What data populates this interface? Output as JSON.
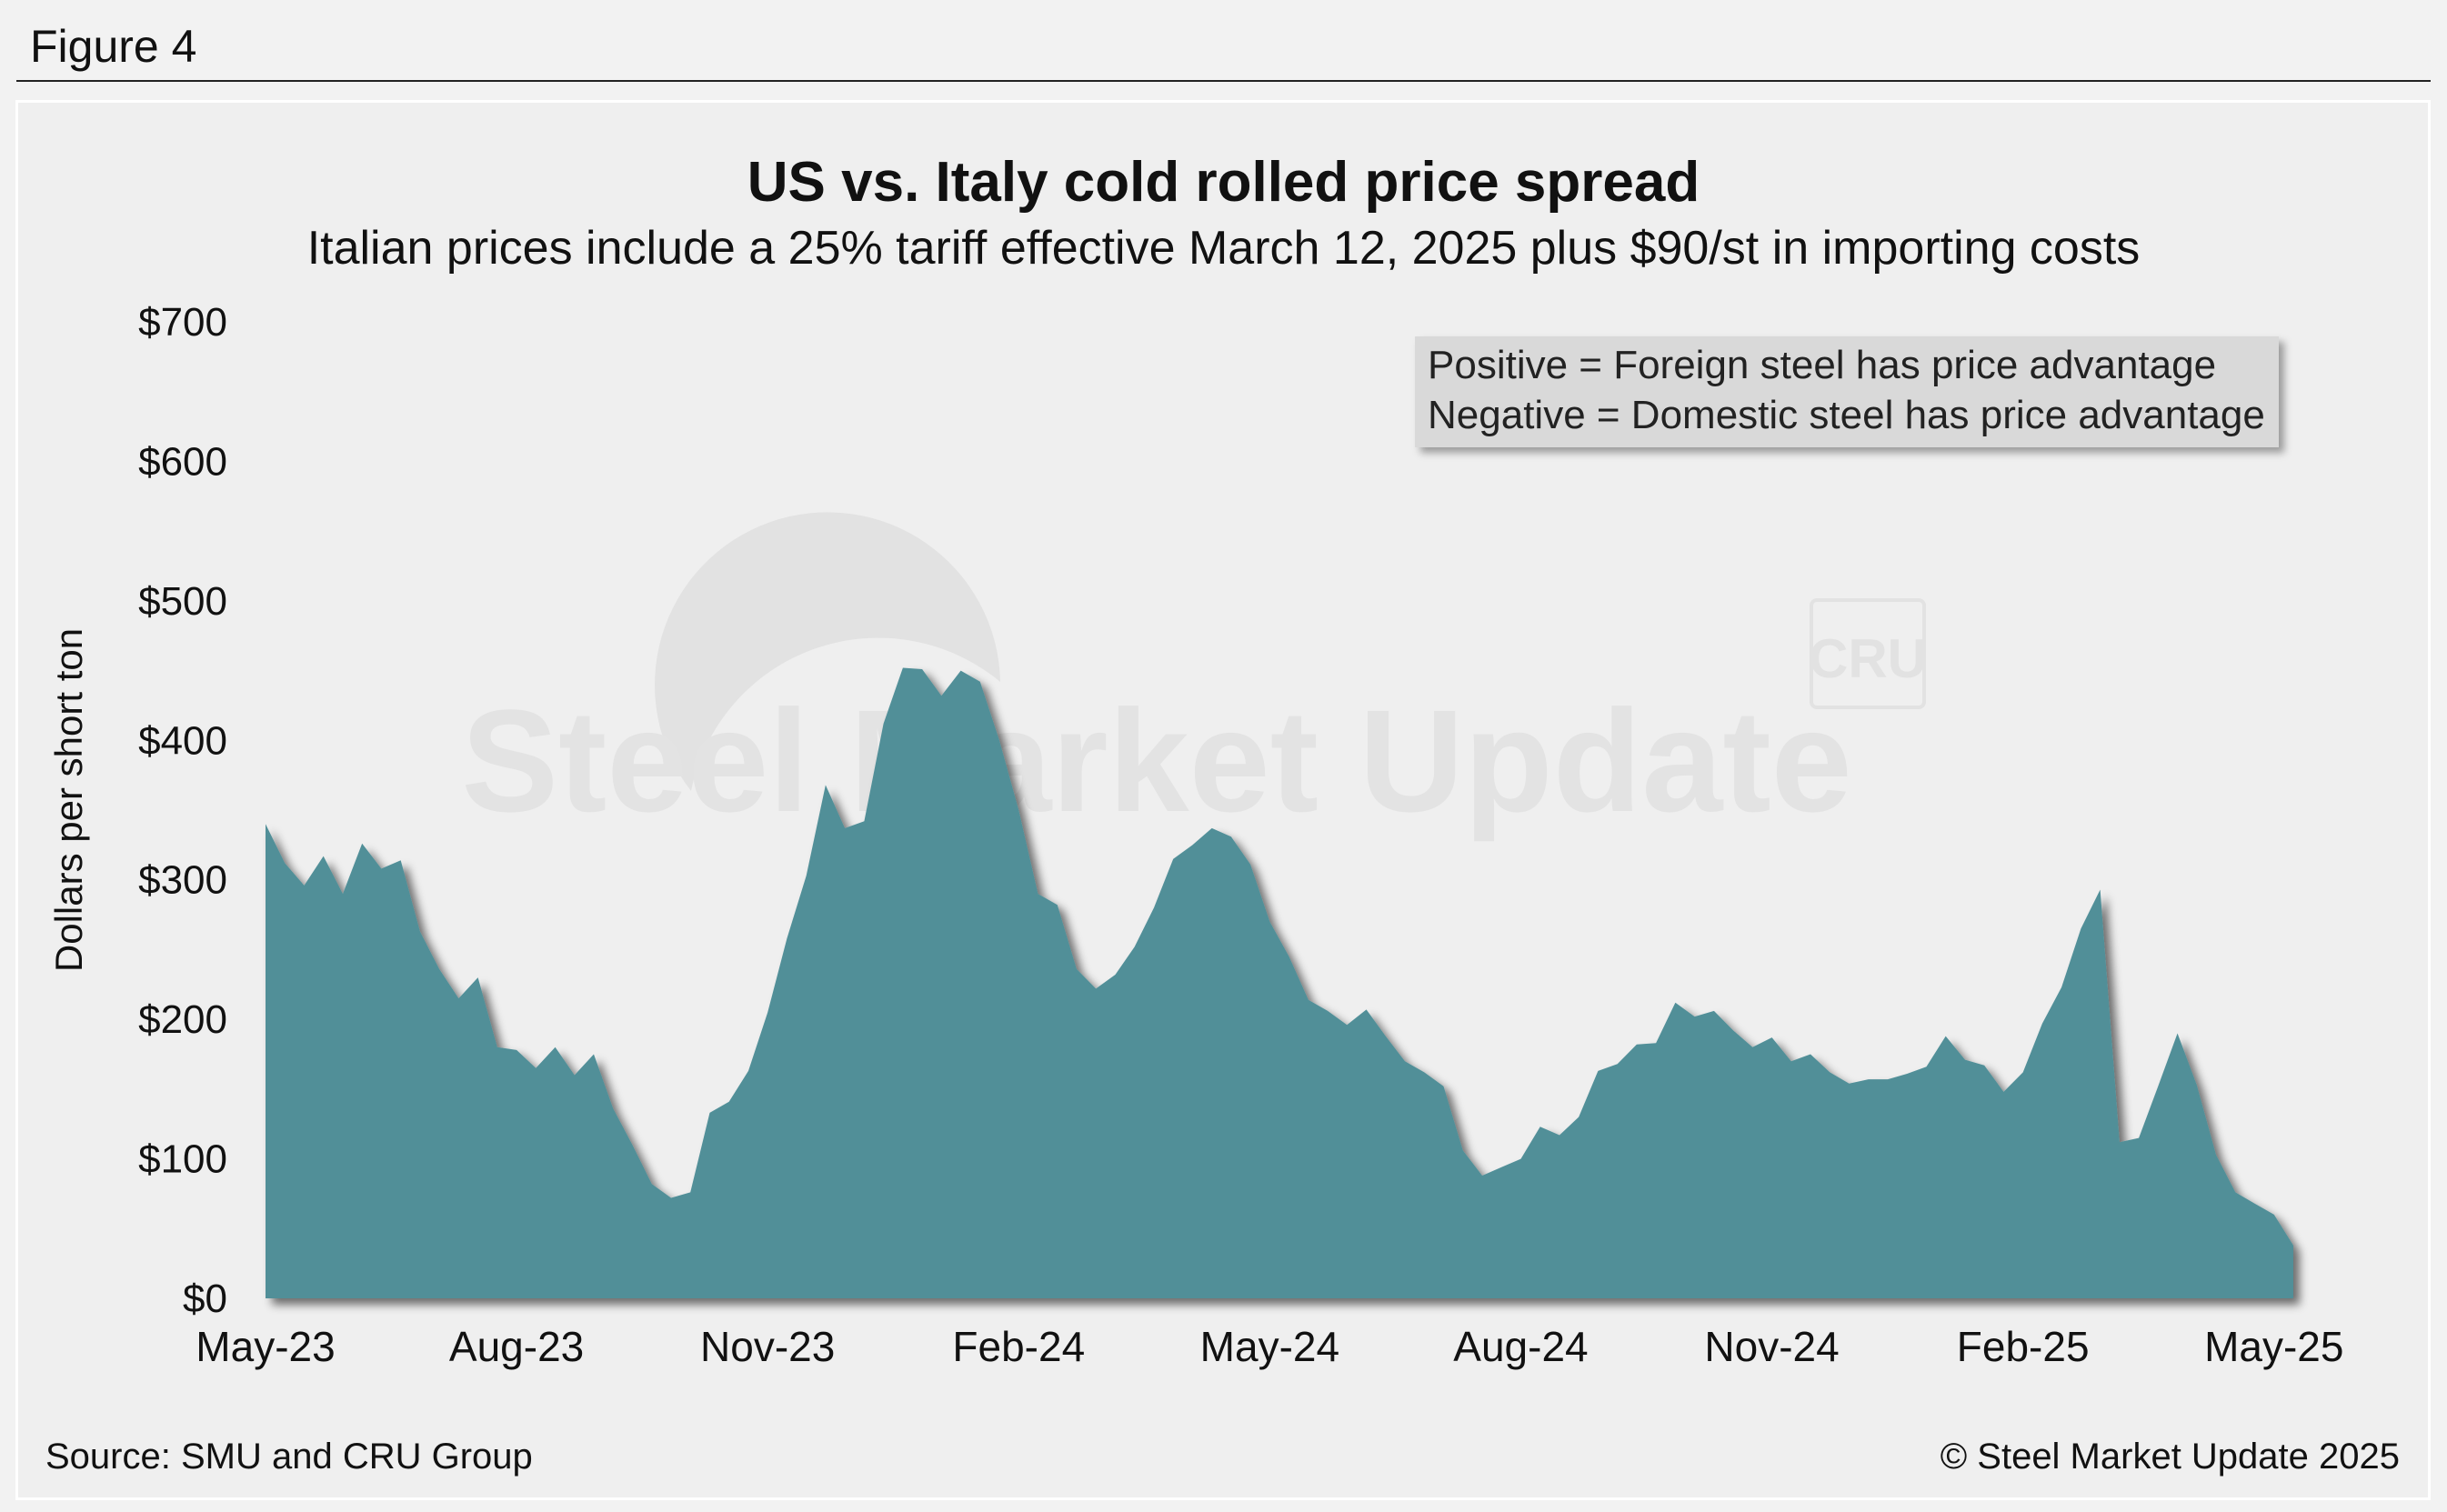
{
  "figure_label": "Figure 4",
  "source": "Source: SMU and CRU Group",
  "copyright": "© Steel Market Update 2025",
  "watermark": {
    "brand": "Steel Market Update",
    "logo": "CRU"
  },
  "colors": {
    "area": "#518f98",
    "shadow": "#333333",
    "background": "#efefef"
  },
  "chart_data": {
    "type": "area",
    "title": "US vs. Italy cold rolled price spread",
    "subtitle": "Italian prices include a 25% tariff effective March 12, 2025 plus $90/st in importing costs",
    "xlabel": "",
    "ylabel": "Dollars per short ton",
    "ylim": [
      0,
      700
    ],
    "y_ticks": [
      0,
      100,
      200,
      300,
      400,
      500,
      600,
      700
    ],
    "y_tick_labels": [
      "$0",
      "$100",
      "$200",
      "$300",
      "$400",
      "$500",
      "$600",
      "$700"
    ],
    "x_tick_labels": [
      "May-23",
      "Aug-23",
      "Nov-23",
      "Feb-24",
      "May-24",
      "Aug-24",
      "Nov-24",
      "Feb-25",
      "May-25"
    ],
    "x_tick_index": [
      0,
      13,
      26,
      39,
      52,
      65,
      78,
      91,
      104
    ],
    "annotation": [
      "Positive = Foreign steel has price advantage",
      "Negative = Domestic steel has price advantage"
    ],
    "series": [
      {
        "name": "US vs. Italy cold rolled price spread",
        "values": [
          340,
          312,
          296,
          317,
          290,
          326,
          308,
          314,
          263,
          236,
          215,
          230,
          180,
          178,
          165,
          180,
          160,
          175,
          136,
          110,
          82,
          72,
          76,
          133,
          141,
          163,
          205,
          258,
          303,
          368,
          337,
          342,
          412,
          452,
          451,
          432,
          450,
          442,
          400,
          350,
          290,
          282,
          236,
          222,
          232,
          252,
          280,
          315,
          325,
          337,
          331,
          311,
          270,
          245,
          214,
          206,
          196,
          207,
          188,
          170,
          162,
          152,
          106,
          88,
          94,
          100,
          123,
          117,
          130,
          163,
          168,
          182,
          183,
          212,
          202,
          206,
          192,
          180,
          187,
          170,
          175,
          162,
          154,
          157,
          157,
          161,
          166,
          188,
          171,
          167,
          148,
          162,
          197,
          223,
          265,
          293,
          112,
          115,
          152,
          190,
          153,
          103,
          76,
          68,
          60,
          38
        ]
      }
    ]
  }
}
